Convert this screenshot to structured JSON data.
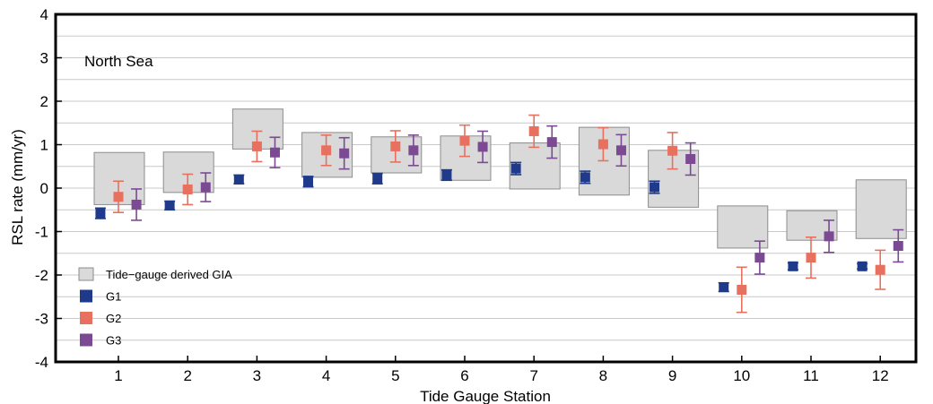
{
  "chart_data": {
    "type": "scatter",
    "annotation": "North Sea",
    "xlabel": "Tide Gauge Station",
    "ylabel": "RSL rate (mm/yr)",
    "ylim": [
      -4,
      4
    ],
    "yticks": [
      -4,
      -3,
      -2,
      -1,
      0,
      1,
      2,
      3,
      4
    ],
    "categories": [
      "1",
      "2",
      "3",
      "4",
      "5",
      "6",
      "7",
      "8",
      "9",
      "10",
      "11",
      "12"
    ],
    "grid": "horizontal lines every 0.5",
    "legend_position": "bottom-left",
    "colors": {
      "gia_fill": "#d9d9d9",
      "gia_stroke": "#8c8c8c",
      "G1": "#1f3a8a",
      "G2": "#e8705e",
      "G3": "#7b4a93",
      "grid": "#c8c8c8"
    },
    "gia_range": {
      "name": "Tide−gauge derived GIA",
      "low": [
        -0.38,
        -0.1,
        0.9,
        0.25,
        0.35,
        0.18,
        -0.02,
        -0.16,
        -0.44,
        -1.38,
        -1.2,
        -1.16
      ],
      "high": [
        0.82,
        0.83,
        1.82,
        1.28,
        1.18,
        1.2,
        1.04,
        1.4,
        0.87,
        -0.41,
        -0.52,
        0.19
      ]
    },
    "series": [
      {
        "name": "G1",
        "values": [
          -0.58,
          -0.4,
          0.2,
          0.15,
          0.22,
          0.3,
          0.45,
          0.25,
          0.02,
          -2.28,
          -1.8,
          -1.8
        ],
        "err": [
          0.12,
          0.1,
          0.1,
          0.12,
          0.12,
          0.12,
          0.14,
          0.14,
          0.14,
          0.1,
          0.08,
          0.06
        ]
      },
      {
        "name": "G2",
        "values": [
          -0.2,
          -0.03,
          0.96,
          0.87,
          0.96,
          1.09,
          1.31,
          1.01,
          0.86,
          -2.34,
          -1.6,
          -1.88
        ],
        "err": [
          0.36,
          0.35,
          0.35,
          0.35,
          0.36,
          0.36,
          0.37,
          0.38,
          0.42,
          0.52,
          0.47,
          0.45
        ]
      },
      {
        "name": "G3",
        "values": [
          -0.38,
          0.02,
          0.82,
          0.8,
          0.87,
          0.95,
          1.06,
          0.87,
          0.67,
          -1.6,
          -1.11,
          -1.33
        ],
        "err": [
          0.36,
          0.33,
          0.35,
          0.36,
          0.35,
          0.36,
          0.37,
          0.36,
          0.37,
          0.38,
          0.37,
          0.37
        ]
      }
    ]
  }
}
